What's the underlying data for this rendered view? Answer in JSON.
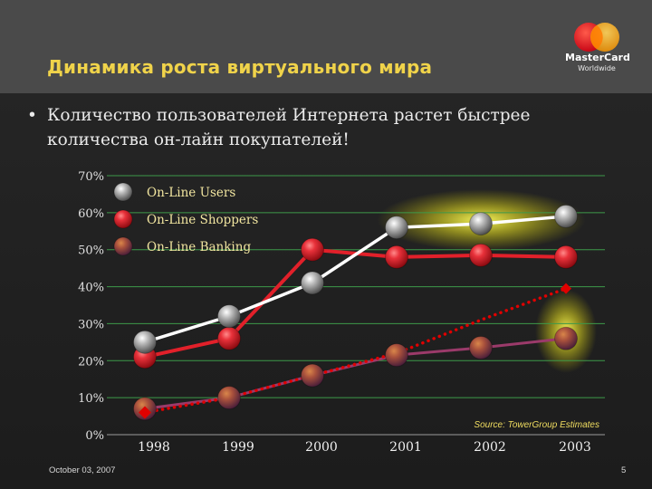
{
  "slide": {
    "title": "Динамика роста виртуального мира",
    "bullet": "Количество пользователей Интернета растет быстрее количества он-лайн покупателей!",
    "date": "October 03, 2007",
    "page_number": "5"
  },
  "logo": {
    "word": "MasterCard",
    "sub": "Worldwide",
    "colors": [
      "#e3001b",
      "#f7a100"
    ]
  },
  "chart_data": {
    "type": "line",
    "categories": [
      "1998",
      "1999",
      "2000",
      "2001",
      "2002",
      "2003"
    ],
    "ylim": [
      0,
      70
    ],
    "yticks": [
      "0%",
      "10%",
      "20%",
      "30%",
      "40%",
      "50%",
      "60%",
      "70%"
    ],
    "grid": true,
    "legend_position": "top-left",
    "source": "Source: TowerGroup Estimates",
    "series": [
      {
        "name": "On-Line Users",
        "values": [
          25,
          32,
          41,
          56,
          57,
          59
        ],
        "color": "#ffffff",
        "marker": "#bfbfbf"
      },
      {
        "name": "On-Line Shoppers",
        "values": [
          21,
          26,
          50,
          48,
          48.5,
          48
        ],
        "color": "#e2202a",
        "marker": "#e8313a"
      },
      {
        "name": "On-Line Banking",
        "values": [
          7,
          10,
          16,
          21.5,
          23.5,
          26
        ],
        "color": "#9b3a6a",
        "marker": "#a8503c"
      }
    ],
    "trend_line": {
      "values": [
        6,
        10,
        16,
        22,
        31,
        39.5
      ],
      "color": "#e00000"
    }
  }
}
